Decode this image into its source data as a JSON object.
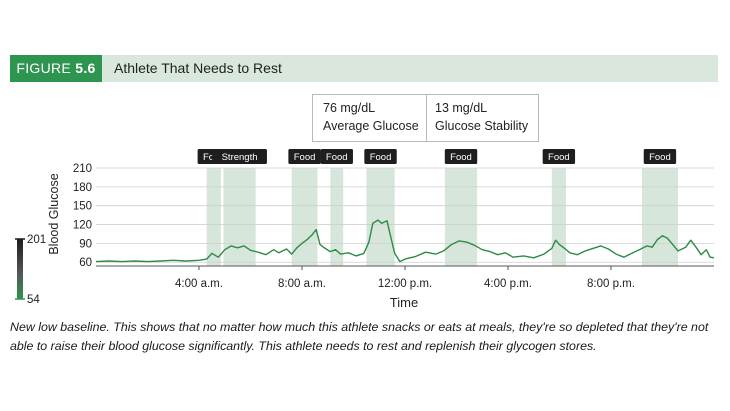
{
  "figure": {
    "label_prefix": "FIGURE",
    "label_number": "5.6",
    "title": "Athlete That Needs to Rest"
  },
  "stats": [
    {
      "value": "76 mg/dL",
      "label": "Average Glucose"
    },
    {
      "value": "13 mg/dL",
      "label": "Glucose Stability"
    }
  ],
  "colors": {
    "header_bg": "#d9e7dc",
    "label_bg": "#2e9550",
    "line": "#2e8b44",
    "band": "#d6e6da",
    "badge": "#1e1e1e"
  },
  "chart_data": {
    "type": "line",
    "xlabel": "Time",
    "ylabel": "Blood Glucose",
    "x_range_hours": [
      0,
      24
    ],
    "ylim": [
      54,
      210
    ],
    "yticks": [
      60,
      90,
      120,
      150,
      180,
      210
    ],
    "xtick_labels": [
      {
        "hour": 4,
        "label": "4:00 a.m."
      },
      {
        "hour": 8,
        "label": "8:00 a.m."
      },
      {
        "hour": 12,
        "label": "12:00 p.m."
      },
      {
        "hour": 16,
        "label": "4:00 p.m."
      },
      {
        "hour": 20,
        "label": "8:00 p.m."
      }
    ],
    "scale_bar": {
      "max_label": "201",
      "min_label": "54"
    },
    "events": [
      {
        "label": "Food",
        "start": 4.3,
        "end": 4.85
      },
      {
        "label": "Strength",
        "start": 4.95,
        "end": 6.2
      },
      {
        "label": "Food",
        "start": 7.6,
        "end": 8.6
      },
      {
        "label": "Food",
        "start": 9.1,
        "end": 9.6
      },
      {
        "label": "Food",
        "start": 10.5,
        "end": 11.6
      },
      {
        "label": "Food",
        "start": 13.55,
        "end": 14.8
      },
      {
        "label": "Food",
        "start": 17.7,
        "end": 18.25
      },
      {
        "label": "Food",
        "start": 21.2,
        "end": 22.6
      }
    ],
    "series": [
      {
        "values": [
          [
            0.0,
            61
          ],
          [
            0.5,
            62
          ],
          [
            1.0,
            61
          ],
          [
            1.5,
            62
          ],
          [
            2.0,
            61
          ],
          [
            2.5,
            62
          ],
          [
            3.0,
            63
          ],
          [
            3.5,
            62
          ],
          [
            4.0,
            63
          ],
          [
            4.3,
            65
          ],
          [
            4.5,
            74
          ],
          [
            4.75,
            68
          ],
          [
            5.0,
            80
          ],
          [
            5.25,
            86
          ],
          [
            5.5,
            83
          ],
          [
            5.75,
            86
          ],
          [
            6.0,
            79
          ],
          [
            6.3,
            76
          ],
          [
            6.6,
            72
          ],
          [
            6.9,
            80
          ],
          [
            7.1,
            75
          ],
          [
            7.4,
            81
          ],
          [
            7.6,
            73
          ],
          [
            7.8,
            83
          ],
          [
            8.0,
            90
          ],
          [
            8.2,
            96
          ],
          [
            8.4,
            104
          ],
          [
            8.55,
            112
          ],
          [
            8.7,
            88
          ],
          [
            8.9,
            82
          ],
          [
            9.1,
            77
          ],
          [
            9.3,
            80
          ],
          [
            9.5,
            73
          ],
          [
            9.8,
            75
          ],
          [
            10.1,
            70
          ],
          [
            10.4,
            74
          ],
          [
            10.6,
            92
          ],
          [
            10.75,
            122
          ],
          [
            10.95,
            127
          ],
          [
            11.1,
            122
          ],
          [
            11.3,
            126
          ],
          [
            11.45,
            100
          ],
          [
            11.6,
            74
          ],
          [
            11.8,
            61
          ],
          [
            12.0,
            65
          ],
          [
            12.4,
            69
          ],
          [
            12.8,
            76
          ],
          [
            13.2,
            73
          ],
          [
            13.5,
            78
          ],
          [
            13.8,
            88
          ],
          [
            14.1,
            94
          ],
          [
            14.4,
            92
          ],
          [
            14.7,
            87
          ],
          [
            15.0,
            80
          ],
          [
            15.3,
            77
          ],
          [
            15.6,
            72
          ],
          [
            15.9,
            75
          ],
          [
            16.2,
            68
          ],
          [
            16.6,
            70
          ],
          [
            17.0,
            67
          ],
          [
            17.4,
            73
          ],
          [
            17.7,
            82
          ],
          [
            17.85,
            95
          ],
          [
            18.0,
            88
          ],
          [
            18.2,
            82
          ],
          [
            18.4,
            75
          ],
          [
            18.7,
            72
          ],
          [
            19.0,
            78
          ],
          [
            19.3,
            82
          ],
          [
            19.6,
            86
          ],
          [
            19.9,
            81
          ],
          [
            20.2,
            73
          ],
          [
            20.5,
            68
          ],
          [
            20.8,
            74
          ],
          [
            21.1,
            80
          ],
          [
            21.4,
            86
          ],
          [
            21.6,
            84
          ],
          [
            21.8,
            96
          ],
          [
            22.0,
            102
          ],
          [
            22.2,
            98
          ],
          [
            22.4,
            88
          ],
          [
            22.6,
            78
          ],
          [
            22.9,
            84
          ],
          [
            23.1,
            95
          ],
          [
            23.3,
            84
          ],
          [
            23.5,
            72
          ],
          [
            23.7,
            80
          ],
          [
            23.85,
            68
          ],
          [
            24.0,
            67
          ]
        ]
      }
    ]
  },
  "caption": "New low baseline. This shows that no matter how much this athlete snacks or eats at meals, they're so depleted that they're not able to raise their blood glucose significantly. This athlete needs to rest and replenish their glycogen stores."
}
